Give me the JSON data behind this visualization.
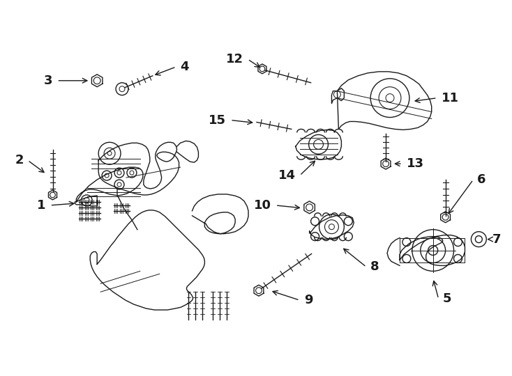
{
  "bg_color": "#ffffff",
  "line_color": "#1a1a1a",
  "fig_width": 7.34,
  "fig_height": 5.4,
  "dpi": 100,
  "label_fontsize": 13
}
